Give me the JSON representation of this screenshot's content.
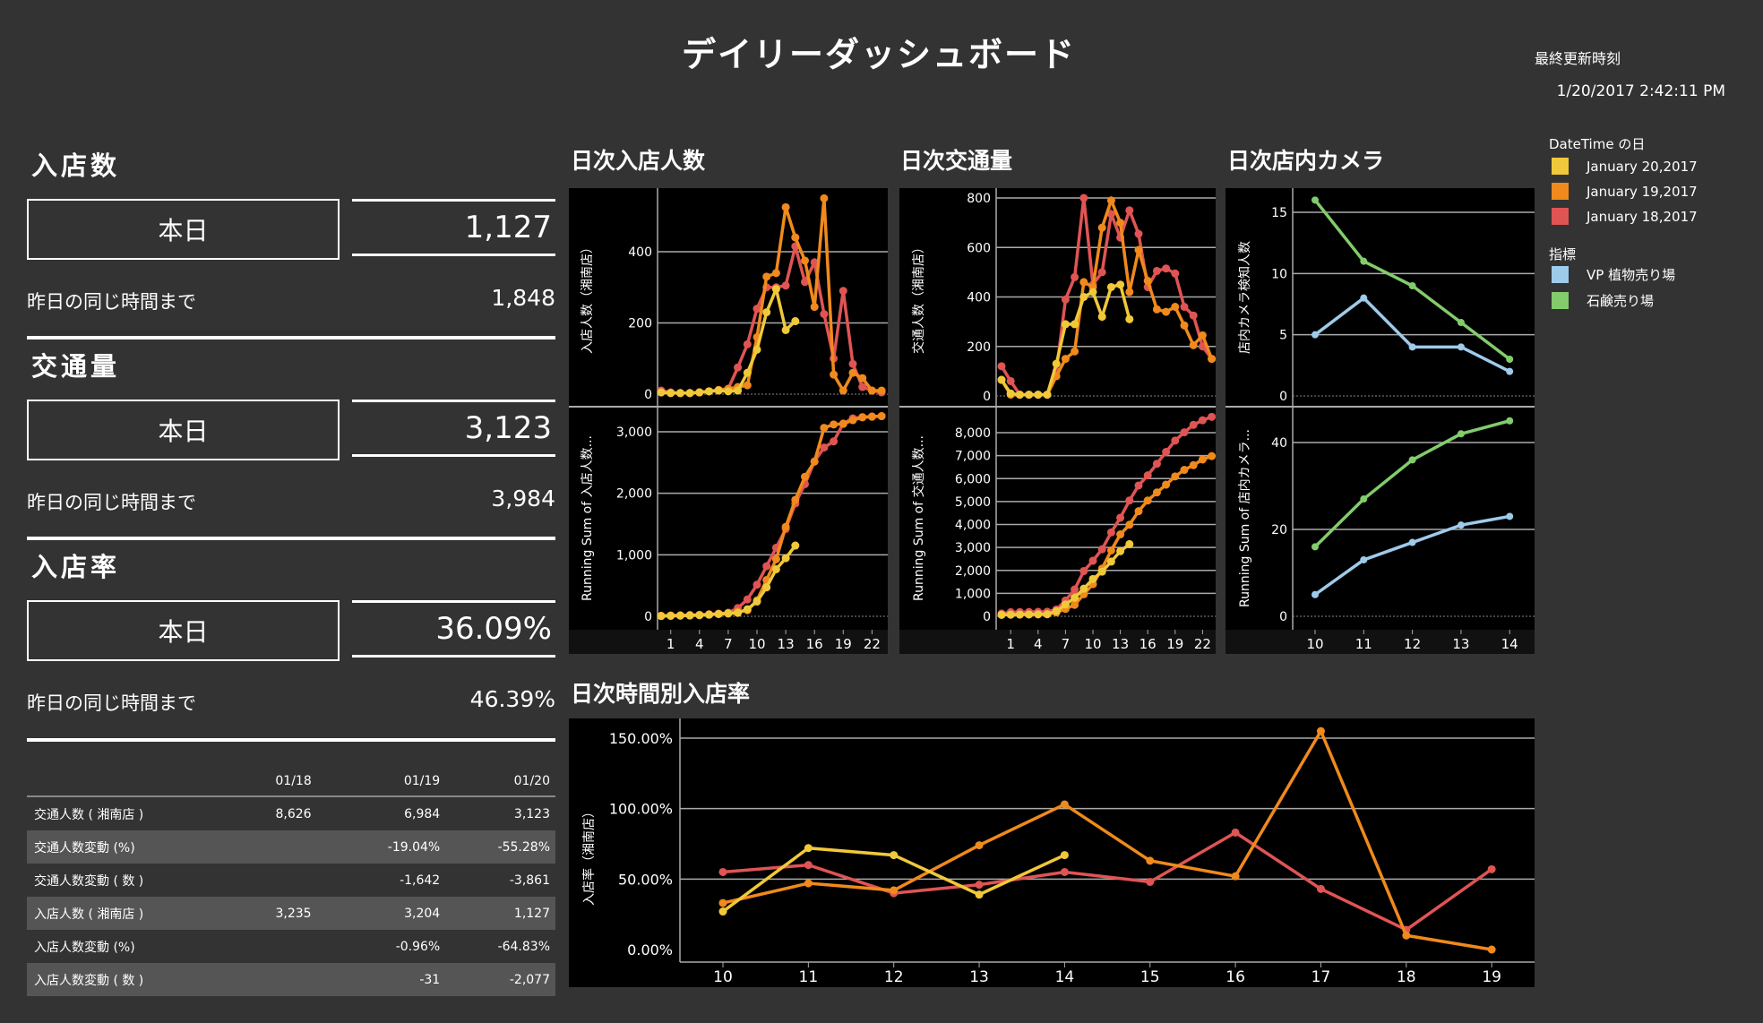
{
  "header": {
    "title": "デイリーダッシュボード",
    "updated_label": "最終更新時刻",
    "updated_value": "1/20/2017 2:42:11 PM"
  },
  "kpis": [
    {
      "title": "入店数",
      "today_label": "本日",
      "today_value": "1,127",
      "prev_label": "昨日の同じ時間まで",
      "prev_value": "1,848"
    },
    {
      "title": "交通量",
      "today_label": "本日",
      "today_value": "3,123",
      "prev_label": "昨日の同じ時間まで",
      "prev_value": "3,984"
    },
    {
      "title": "入店率",
      "today_label": "本日",
      "today_value": "36.09%",
      "prev_label": "昨日の同じ時間まで",
      "prev_value": "46.39%"
    }
  ],
  "table": {
    "headers": [
      "",
      "01/18",
      "01/19",
      "01/20"
    ],
    "rows": [
      [
        "交通人数 ( 湘南店 )",
        "8,626",
        "6,984",
        "3,123"
      ],
      [
        "交通人数変動 (%)",
        "",
        "-19.04%",
        "-55.28%"
      ],
      [
        "交通人数変動 ( 数 )",
        "",
        "-1,642",
        "-3,861"
      ],
      [
        "入店人数 ( 湘南店 )",
        "3,235",
        "3,204",
        "1,127"
      ],
      [
        "入店人数変動 (%)",
        "",
        "-0.96%",
        "-64.83%"
      ],
      [
        "入店人数変動 ( 数 )",
        "",
        "-31",
        "-2,077"
      ]
    ]
  },
  "legend": {
    "date_title": "DateTime の日",
    "dates": [
      {
        "label": "January 20,2017",
        "color": "#f0c93a"
      },
      {
        "label": "January 19,2017",
        "color": "#f08a1c"
      },
      {
        "label": "January 18,2017",
        "color": "#e05454"
      }
    ],
    "metric_title": "指標",
    "metrics": [
      {
        "label": "VP 植物売り場",
        "color": "#9ecbea"
      },
      {
        "label": "石鹸売り場",
        "color": "#82cc6c"
      }
    ]
  },
  "chart_data": [
    {
      "id": "entry",
      "type": "line",
      "title": "日次入店人数",
      "ylabel": "入店人数（湘南店）",
      "ylabel2": "Running Sum of 入店人数...",
      "xticks": [
        1,
        4,
        7,
        10,
        13,
        16,
        19,
        22
      ],
      "yticks": [
        0,
        200,
        400
      ],
      "yticks2": [
        0,
        1000,
        2000,
        3000
      ],
      "ytick_labels2": [
        "0",
        "1,000",
        "2,000",
        "3,000"
      ],
      "series": [
        {
          "name": "January 18,2017",
          "color": "#e05454",
          "x": [
            0,
            1,
            2,
            3,
            4,
            5,
            6,
            7,
            8,
            9,
            10,
            11,
            12,
            13,
            14,
            15,
            16,
            17,
            18,
            19,
            20,
            21,
            22,
            23
          ],
          "values": [
            10,
            5,
            3,
            3,
            5,
            8,
            10,
            15,
            75,
            140,
            240,
            300,
            300,
            305,
            415,
            315,
            370,
            225,
            100,
            290,
            85,
            20,
            10,
            5
          ]
        },
        {
          "name": "January 19,2017",
          "color": "#f08a1c",
          "x": [
            0,
            1,
            2,
            3,
            4,
            5,
            6,
            7,
            8,
            9,
            10,
            11,
            12,
            13,
            14,
            15,
            16,
            17,
            18,
            19,
            20,
            21,
            22,
            23
          ],
          "values": [
            5,
            3,
            3,
            3,
            5,
            8,
            12,
            15,
            20,
            25,
            160,
            330,
            340,
            525,
            440,
            375,
            245,
            550,
            55,
            10,
            60,
            45,
            10,
            10
          ]
        },
        {
          "name": "January 20,2017",
          "color": "#f0c93a",
          "x": [
            0,
            1,
            2,
            3,
            4,
            5,
            6,
            7,
            8,
            9,
            10,
            11,
            12,
            13,
            14
          ],
          "values": [
            5,
            3,
            3,
            3,
            5,
            8,
            10,
            8,
            10,
            60,
            125,
            230,
            295,
            180,
            205
          ]
        }
      ]
    },
    {
      "id": "traffic",
      "type": "line",
      "title": "日次交通量",
      "ylabel": "交通人数（湘南店）",
      "ylabel2": "Running Sum of 交通人数...",
      "xticks": [
        1,
        4,
        7,
        10,
        13,
        16,
        19,
        22
      ],
      "yticks": [
        0,
        200,
        400,
        600,
        800
      ],
      "yticks2": [
        0,
        1000,
        2000,
        3000,
        4000,
        5000,
        6000,
        7000,
        8000
      ],
      "ytick_labels2": [
        "0",
        "1,000",
        "2,000",
        "3,000",
        "4,000",
        "5,000",
        "6,000",
        "7,000",
        "8,000"
      ],
      "series": [
        {
          "name": "January 18,2017",
          "color": "#e05454",
          "x": [
            0,
            1,
            2,
            3,
            4,
            5,
            6,
            7,
            8,
            9,
            10,
            11,
            12,
            13,
            14,
            15,
            16,
            17,
            18,
            19,
            20,
            21,
            22,
            23
          ],
          "values": [
            120,
            60,
            5,
            5,
            5,
            5,
            100,
            390,
            480,
            800,
            450,
            500,
            735,
            640,
            750,
            655,
            440,
            505,
            515,
            495,
            360,
            325,
            200,
            150
          ]
        },
        {
          "name": "January 19,2017",
          "color": "#f08a1c",
          "x": [
            0,
            1,
            2,
            3,
            4,
            5,
            6,
            7,
            8,
            9,
            10,
            11,
            12,
            13,
            14,
            15,
            16,
            17,
            18,
            19,
            20,
            21,
            22,
            23
          ],
          "values": [
            65,
            5,
            5,
            5,
            5,
            5,
            80,
            150,
            180,
            460,
            440,
            680,
            790,
            700,
            420,
            590,
            465,
            350,
            340,
            360,
            285,
            205,
            245,
            150
          ]
        },
        {
          "name": "January 20,2017",
          "color": "#f0c93a",
          "x": [
            0,
            1,
            2,
            3,
            4,
            5,
            6,
            7,
            8,
            9,
            10,
            11,
            12,
            13,
            14
          ],
          "values": [
            65,
            10,
            5,
            5,
            5,
            5,
            130,
            290,
            290,
            400,
            420,
            320,
            440,
            450,
            310
          ]
        }
      ]
    },
    {
      "id": "camera",
      "type": "line",
      "title": "日次店内カメラ",
      "ylabel": "店内カメラ検知人数",
      "ylabel2": "Running Sum of 店内カメラ...",
      "xticks": [
        10,
        11,
        12,
        13,
        14
      ],
      "yticks": [
        0,
        5,
        10,
        15
      ],
      "yticks2": [
        0,
        20,
        40
      ],
      "ytick_labels2": [
        "0",
        "20",
        "40"
      ],
      "series": [
        {
          "name": "VP 植物売り場",
          "color": "#9ecbea",
          "x": [
            10,
            11,
            12,
            13,
            14
          ],
          "values": [
            5,
            8,
            4,
            4,
            2
          ]
        },
        {
          "name": "石鹸売り場",
          "color": "#82cc6c",
          "x": [
            10,
            11,
            12,
            13,
            14
          ],
          "values": [
            16,
            11,
            9,
            6,
            3
          ]
        }
      ]
    },
    {
      "id": "rate",
      "type": "line",
      "title": "日次時間別入店率",
      "ylabel": "入店率（湘南店）",
      "xticks": [
        10,
        11,
        12,
        13,
        14,
        15,
        16,
        17,
        18,
        19
      ],
      "yticks": [
        0,
        50,
        100,
        150
      ],
      "ytick_labels": [
        "0.00%",
        "50.00%",
        "100.00%",
        "150.00%"
      ],
      "series": [
        {
          "name": "January 18,2017",
          "color": "#e05454",
          "x": [
            10,
            11,
            12,
            13,
            14,
            15,
            16,
            17,
            18,
            19
          ],
          "values": [
            55,
            60,
            40,
            46,
            55,
            48,
            83,
            43,
            14,
            57
          ]
        },
        {
          "name": "January 19,2017",
          "color": "#f08a1c",
          "x": [
            10,
            11,
            12,
            13,
            14,
            15,
            16,
            17,
            18,
            19
          ],
          "values": [
            33,
            47,
            42,
            74,
            103,
            63,
            52,
            155,
            10,
            0
          ]
        },
        {
          "name": "January 20,2017",
          "color": "#f0c93a",
          "x": [
            10,
            11,
            12,
            13,
            14
          ],
          "values": [
            27,
            72,
            67,
            39,
            67
          ]
        }
      ]
    }
  ]
}
